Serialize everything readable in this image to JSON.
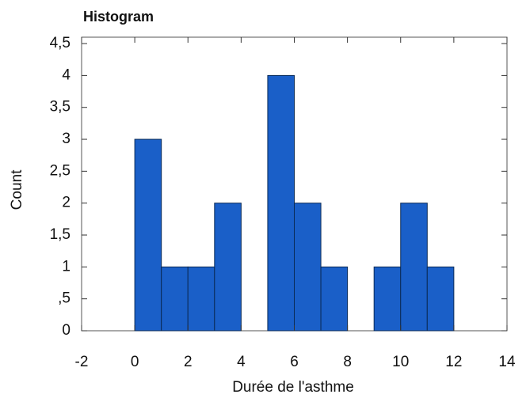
{
  "chart_data": {
    "type": "histogram",
    "title": "Histogram",
    "x_label": "Durée de l'asthme",
    "y_label": "Count",
    "bins": [
      0,
      1,
      2,
      3,
      4,
      5,
      6,
      7,
      8,
      9,
      10,
      11,
      12
    ],
    "values": [
      3,
      1,
      1,
      2,
      0,
      4,
      2,
      1,
      0,
      1,
      2,
      1
    ],
    "color": "#1a5fc8",
    "xlim": [
      -2,
      14
    ],
    "xticks": [
      -2,
      0,
      2,
      4,
      6,
      8,
      10,
      12,
      14
    ],
    "ylim": [
      0,
      4.6
    ],
    "yticks": [
      0,
      {
        "value": 0.5,
        "label": ",5"
      },
      1,
      {
        "value": 1.5,
        "label": "1,5"
      },
      2,
      {
        "value": 2.5,
        "label": "2,5"
      },
      3,
      {
        "value": 3.5,
        "label": "3,5"
      },
      4,
      {
        "value": 4.5,
        "label": "4,5"
      }
    ]
  }
}
